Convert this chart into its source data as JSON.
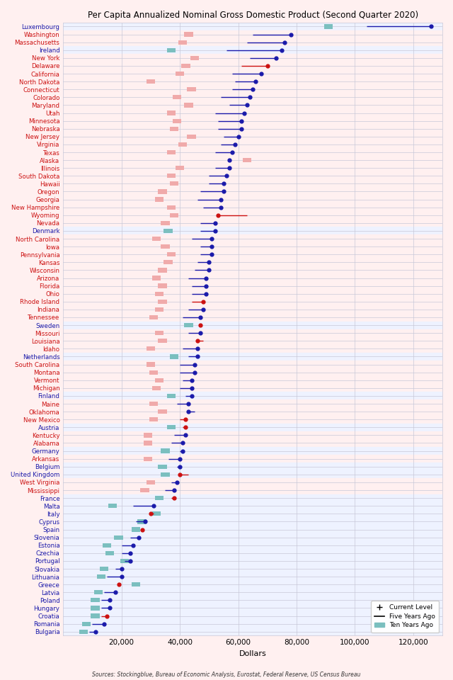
{
  "title": "Per Capita Annualized Nominal Gross Domestic Product (Second Quarter 2020)",
  "xlabel": "Dollars",
  "source": "Sources: Stockingblue, Bureau of Economic Analysis, Eurostat, Federal Reserve, US Census Bureau",
  "xlim": [
    0,
    130000
  ],
  "xticks": [
    20000,
    40000,
    60000,
    80000,
    100000,
    120000
  ],
  "xticklabels": [
    "20,000",
    "40,000",
    "60,000",
    "80,000",
    "100,000",
    "120,000"
  ],
  "entries": [
    {
      "name": "Luxembourg",
      "eu": true,
      "current": 126000,
      "five_yr": 104000,
      "ten_yr": 91000,
      "dot_red": false
    },
    {
      "name": "Washington",
      "eu": false,
      "current": 78000,
      "five_yr": 65000,
      "ten_yr": 43000,
      "dot_red": false
    },
    {
      "name": "Massachusetts",
      "eu": false,
      "current": 76000,
      "five_yr": 63000,
      "ten_yr": 41000,
      "dot_red": false
    },
    {
      "name": "Ireland",
      "eu": true,
      "current": 75000,
      "five_yr": 56000,
      "ten_yr": 37000,
      "dot_red": false
    },
    {
      "name": "New York",
      "eu": false,
      "current": 73000,
      "five_yr": 64000,
      "ten_yr": 45000,
      "dot_red": false
    },
    {
      "name": "Delaware",
      "eu": false,
      "current": 70000,
      "five_yr": 61000,
      "ten_yr": 42000,
      "dot_red": true
    },
    {
      "name": "California",
      "eu": false,
      "current": 68000,
      "five_yr": 58000,
      "ten_yr": 40000,
      "dot_red": false
    },
    {
      "name": "North Dakota",
      "eu": false,
      "current": 66000,
      "five_yr": 59000,
      "ten_yr": 30000,
      "dot_red": false
    },
    {
      "name": "Connecticut",
      "eu": false,
      "current": 65000,
      "five_yr": 58000,
      "ten_yr": 44000,
      "dot_red": false
    },
    {
      "name": "Colorado",
      "eu": false,
      "current": 64000,
      "five_yr": 54000,
      "ten_yr": 39000,
      "dot_red": false
    },
    {
      "name": "Maryland",
      "eu": false,
      "current": 63000,
      "five_yr": 57000,
      "ten_yr": 43000,
      "dot_red": false
    },
    {
      "name": "Utah",
      "eu": false,
      "current": 62000,
      "five_yr": 52000,
      "ten_yr": 37000,
      "dot_red": false
    },
    {
      "name": "Minnesota",
      "eu": false,
      "current": 61000,
      "five_yr": 53000,
      "ten_yr": 39000,
      "dot_red": false
    },
    {
      "name": "Nebraska",
      "eu": false,
      "current": 61000,
      "five_yr": 53000,
      "ten_yr": 38000,
      "dot_red": false
    },
    {
      "name": "New Jersey",
      "eu": false,
      "current": 60000,
      "five_yr": 55000,
      "ten_yr": 44000,
      "dot_red": false
    },
    {
      "name": "Virginia",
      "eu": false,
      "current": 59000,
      "five_yr": 54000,
      "ten_yr": 41000,
      "dot_red": false
    },
    {
      "name": "Texas",
      "eu": false,
      "current": 58000,
      "five_yr": 52000,
      "ten_yr": 37000,
      "dot_red": false
    },
    {
      "name": "Alaska",
      "eu": false,
      "current": 57000,
      "five_yr": 57000,
      "ten_yr": 63000,
      "dot_red": false
    },
    {
      "name": "Illinois",
      "eu": false,
      "current": 57000,
      "five_yr": 52000,
      "ten_yr": 40000,
      "dot_red": false
    },
    {
      "name": "South Dakota",
      "eu": false,
      "current": 56000,
      "five_yr": 50000,
      "ten_yr": 37000,
      "dot_red": false
    },
    {
      "name": "Hawaii",
      "eu": false,
      "current": 55000,
      "five_yr": 50000,
      "ten_yr": 38000,
      "dot_red": false
    },
    {
      "name": "Oregon",
      "eu": false,
      "current": 55000,
      "five_yr": 47000,
      "ten_yr": 34000,
      "dot_red": false
    },
    {
      "name": "Georgia",
      "eu": false,
      "current": 54000,
      "five_yr": 46000,
      "ten_yr": 33000,
      "dot_red": false
    },
    {
      "name": "New Hampshire",
      "eu": false,
      "current": 54000,
      "five_yr": 48000,
      "ten_yr": 37000,
      "dot_red": false
    },
    {
      "name": "Wyoming",
      "eu": false,
      "current": 53000,
      "five_yr": 63000,
      "ten_yr": 38000,
      "dot_red": true
    },
    {
      "name": "Nevada",
      "eu": false,
      "current": 52000,
      "five_yr": 47000,
      "ten_yr": 35000,
      "dot_red": false
    },
    {
      "name": "Denmark",
      "eu": true,
      "current": 52000,
      "five_yr": 47000,
      "ten_yr": 36000,
      "dot_red": false
    },
    {
      "name": "North Carolina",
      "eu": false,
      "current": 51000,
      "five_yr": 44000,
      "ten_yr": 32000,
      "dot_red": false
    },
    {
      "name": "Iowa",
      "eu": false,
      "current": 51000,
      "five_yr": 47000,
      "ten_yr": 35000,
      "dot_red": false
    },
    {
      "name": "Pennsylvania",
      "eu": false,
      "current": 51000,
      "five_yr": 47000,
      "ten_yr": 37000,
      "dot_red": false
    },
    {
      "name": "Kansas",
      "eu": false,
      "current": 50000,
      "five_yr": 46000,
      "ten_yr": 36000,
      "dot_red": false
    },
    {
      "name": "Wisconsin",
      "eu": false,
      "current": 50000,
      "five_yr": 45000,
      "ten_yr": 34000,
      "dot_red": false
    },
    {
      "name": "Arizona",
      "eu": false,
      "current": 49000,
      "five_yr": 43000,
      "ten_yr": 32000,
      "dot_red": false
    },
    {
      "name": "Florida",
      "eu": false,
      "current": 49000,
      "five_yr": 44000,
      "ten_yr": 34000,
      "dot_red": false
    },
    {
      "name": "Ohio",
      "eu": false,
      "current": 49000,
      "five_yr": 44000,
      "ten_yr": 33000,
      "dot_red": false
    },
    {
      "name": "Rhode Island",
      "eu": false,
      "current": 48000,
      "five_yr": 44000,
      "ten_yr": 34000,
      "dot_red": true
    },
    {
      "name": "Indiana",
      "eu": false,
      "current": 48000,
      "five_yr": 43000,
      "ten_yr": 33000,
      "dot_red": false
    },
    {
      "name": "Tennessee",
      "eu": false,
      "current": 47000,
      "five_yr": 41000,
      "ten_yr": 31000,
      "dot_red": false
    },
    {
      "name": "Sweden",
      "eu": true,
      "current": 47000,
      "five_yr": 47000,
      "ten_yr": 43000,
      "dot_red": true
    },
    {
      "name": "Missouri",
      "eu": false,
      "current": 47000,
      "five_yr": 43000,
      "ten_yr": 33000,
      "dot_red": false
    },
    {
      "name": "Louisiana",
      "eu": false,
      "current": 46000,
      "five_yr": 48000,
      "ten_yr": 34000,
      "dot_red": true
    },
    {
      "name": "Idaho",
      "eu": false,
      "current": 46000,
      "five_yr": 41000,
      "ten_yr": 30000,
      "dot_red": false
    },
    {
      "name": "Netherlands",
      "eu": true,
      "current": 46000,
      "five_yr": 43000,
      "ten_yr": 38000,
      "dot_red": false
    },
    {
      "name": "South Carolina",
      "eu": false,
      "current": 45000,
      "five_yr": 40000,
      "ten_yr": 30000,
      "dot_red": false
    },
    {
      "name": "Montana",
      "eu": false,
      "current": 45000,
      "five_yr": 40000,
      "ten_yr": 31000,
      "dot_red": false
    },
    {
      "name": "Vermont",
      "eu": false,
      "current": 44000,
      "five_yr": 41000,
      "ten_yr": 33000,
      "dot_red": false
    },
    {
      "name": "Michigan",
      "eu": false,
      "current": 44000,
      "five_yr": 40000,
      "ten_yr": 32000,
      "dot_red": false
    },
    {
      "name": "Finland",
      "eu": true,
      "current": 44000,
      "five_yr": 42000,
      "ten_yr": 37000,
      "dot_red": false
    },
    {
      "name": "Maine",
      "eu": false,
      "current": 43000,
      "five_yr": 39000,
      "ten_yr": 31000,
      "dot_red": false
    },
    {
      "name": "Oklahoma",
      "eu": false,
      "current": 43000,
      "five_yr": 45000,
      "ten_yr": 34000,
      "dot_red": false
    },
    {
      "name": "New Mexico",
      "eu": false,
      "current": 42000,
      "five_yr": 40000,
      "ten_yr": 31000,
      "dot_red": true
    },
    {
      "name": "Austria",
      "eu": true,
      "current": 42000,
      "five_yr": 41000,
      "ten_yr": 37000,
      "dot_red": true
    },
    {
      "name": "Kentucky",
      "eu": false,
      "current": 42000,
      "five_yr": 38000,
      "ten_yr": 29000,
      "dot_red": false
    },
    {
      "name": "Alabama",
      "eu": false,
      "current": 41000,
      "five_yr": 37000,
      "ten_yr": 29000,
      "dot_red": false
    },
    {
      "name": "Germany",
      "eu": true,
      "current": 41000,
      "five_yr": 40000,
      "ten_yr": 35000,
      "dot_red": false
    },
    {
      "name": "Arkansas",
      "eu": false,
      "current": 40000,
      "five_yr": 36000,
      "ten_yr": 29000,
      "dot_red": false
    },
    {
      "name": "Belgium",
      "eu": true,
      "current": 40000,
      "five_yr": 39000,
      "ten_yr": 34000,
      "dot_red": false
    },
    {
      "name": "United Kingdom",
      "eu": true,
      "current": 40000,
      "five_yr": 43000,
      "ten_yr": 35000,
      "dot_red": true
    },
    {
      "name": "West Virginia",
      "eu": false,
      "current": 39000,
      "five_yr": 37000,
      "ten_yr": 30000,
      "dot_red": false
    },
    {
      "name": "Mississippi",
      "eu": false,
      "current": 38000,
      "five_yr": 35000,
      "ten_yr": 28000,
      "dot_red": false
    },
    {
      "name": "France",
      "eu": true,
      "current": 38000,
      "five_yr": 37000,
      "ten_yr": 33000,
      "dot_red": true
    },
    {
      "name": "Malta",
      "eu": true,
      "current": 31000,
      "five_yr": 24000,
      "ten_yr": 17000,
      "dot_red": false
    },
    {
      "name": "Italy",
      "eu": true,
      "current": 30000,
      "five_yr": 31000,
      "ten_yr": 32000,
      "dot_red": true
    },
    {
      "name": "Cyprus",
      "eu": true,
      "current": 28000,
      "five_yr": 25000,
      "ten_yr": 27000,
      "dot_red": false
    },
    {
      "name": "Spain",
      "eu": true,
      "current": 27000,
      "five_yr": 27000,
      "ten_yr": 25000,
      "dot_red": true
    },
    {
      "name": "Slovenia",
      "eu": true,
      "current": 26000,
      "five_yr": 23000,
      "ten_yr": 19000,
      "dot_red": false
    },
    {
      "name": "Estonia",
      "eu": true,
      "current": 24000,
      "five_yr": 20000,
      "ten_yr": 15000,
      "dot_red": false
    },
    {
      "name": "Czechia",
      "eu": true,
      "current": 23000,
      "five_yr": 20000,
      "ten_yr": 16000,
      "dot_red": false
    },
    {
      "name": "Portugal",
      "eu": true,
      "current": 23000,
      "five_yr": 21000,
      "ten_yr": 21000,
      "dot_red": false
    },
    {
      "name": "Slovakia",
      "eu": true,
      "current": 20000,
      "five_yr": 18000,
      "ten_yr": 14000,
      "dot_red": false
    },
    {
      "name": "Lithuania",
      "eu": true,
      "current": 20000,
      "five_yr": 15000,
      "ten_yr": 13000,
      "dot_red": false
    },
    {
      "name": "Greece",
      "eu": true,
      "current": 19000,
      "five_yr": 19000,
      "ten_yr": 25000,
      "dot_red": true
    },
    {
      "name": "Latvia",
      "eu": true,
      "current": 18000,
      "five_yr": 14000,
      "ten_yr": 12000,
      "dot_red": false
    },
    {
      "name": "Poland",
      "eu": true,
      "current": 16000,
      "five_yr": 13000,
      "ten_yr": 11000,
      "dot_red": false
    },
    {
      "name": "Hungary",
      "eu": true,
      "current": 16000,
      "five_yr": 13000,
      "ten_yr": 11000,
      "dot_red": false
    },
    {
      "name": "Croatia",
      "eu": true,
      "current": 15000,
      "five_yr": 13000,
      "ten_yr": 11000,
      "dot_red": true
    },
    {
      "name": "Romania",
      "eu": true,
      "current": 14000,
      "five_yr": 10000,
      "ten_yr": 8000,
      "dot_red": false
    },
    {
      "name": "Bulgaria",
      "eu": true,
      "current": 11000,
      "five_yr": 9000,
      "ten_yr": 7000,
      "dot_red": false
    }
  ],
  "bg_pink": "#fff0f0",
  "bg_blue": "#eef2ff",
  "grid_color": "#c8c8d8",
  "col_blue": "#1a1aaa",
  "col_red": "#cc1111",
  "col_dark_red": "#cc1111",
  "sq_teal": "#7bbfbf",
  "sq_pink": "#f0aaaa"
}
